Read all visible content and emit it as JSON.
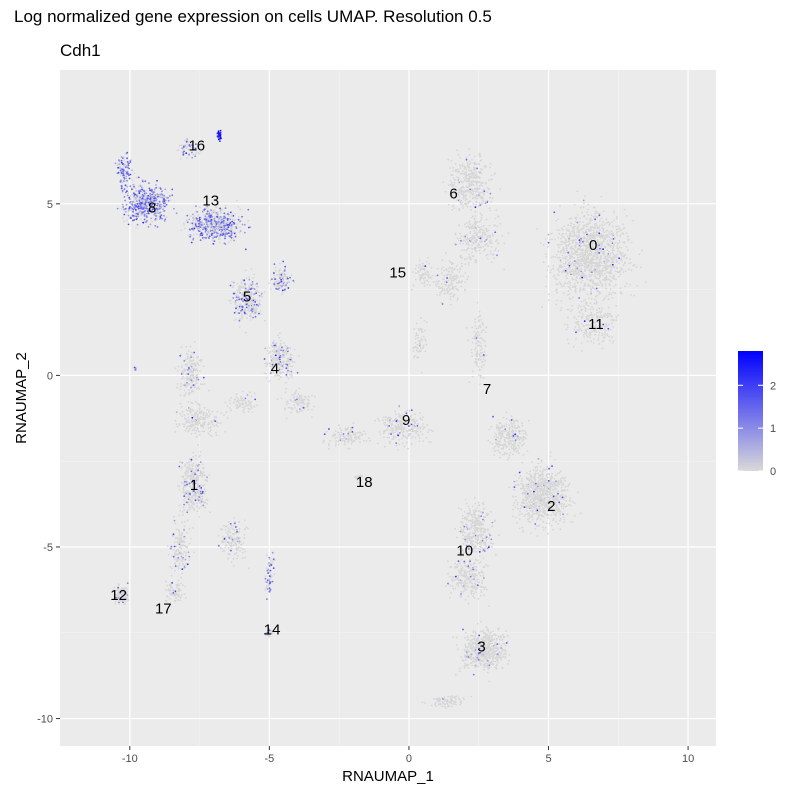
{
  "page_title": "Log normalized gene expression on cells UMAP. Resolution 0.5",
  "chart_data": {
    "type": "scatter",
    "title": "Cdh1",
    "xlabel": "RNAUMAP_1",
    "ylabel": "RNAUMAP_2",
    "xlim": [
      -12.5,
      11.0
    ],
    "ylim": [
      -10.8,
      8.9
    ],
    "x_ticks": [
      -10,
      -5,
      0,
      5,
      10
    ],
    "y_ticks": [
      -10,
      -5,
      0,
      5
    ],
    "x_tick_labels": [
      "-10",
      "-5",
      "0",
      "5",
      "10"
    ],
    "y_tick_labels": [
      "-10",
      "-5",
      "0",
      "5"
    ],
    "grid": true,
    "legend": {
      "position": "right",
      "title": "",
      "ticks": [
        0,
        1,
        2
      ],
      "tick_labels": [
        "0",
        "1",
        "2"
      ],
      "min": 0,
      "max": 2.8,
      "low_color": "#d9d9d9",
      "high_color": "#0000ff"
    },
    "clusters": [
      {
        "label": "0",
        "x": 6.6,
        "y": 3.8
      },
      {
        "label": "1",
        "x": -7.7,
        "y": -3.2
      },
      {
        "label": "2",
        "x": 5.1,
        "y": -3.8
      },
      {
        "label": "3",
        "x": 2.6,
        "y": -7.9
      },
      {
        "label": "4",
        "x": -4.8,
        "y": 0.2
      },
      {
        "label": "5",
        "x": -5.8,
        "y": 2.3
      },
      {
        "label": "6",
        "x": 1.6,
        "y": 5.3
      },
      {
        "label": "7",
        "x": 2.8,
        "y": -0.4
      },
      {
        "label": "8",
        "x": -9.2,
        "y": 4.9
      },
      {
        "label": "9",
        "x": -0.1,
        "y": -1.3
      },
      {
        "label": "10",
        "x": 2.0,
        "y": -5.1
      },
      {
        "label": "11",
        "x": 6.7,
        "y": 1.5
      },
      {
        "label": "12",
        "x": -10.4,
        "y": -6.4
      },
      {
        "label": "13",
        "x": -7.1,
        "y": 5.1
      },
      {
        "label": "14",
        "x": -4.9,
        "y": -7.4
      },
      {
        "label": "15",
        "x": -0.4,
        "y": 3.0
      },
      {
        "label": "16",
        "x": -7.6,
        "y": 6.7
      },
      {
        "label": "17",
        "x": -8.8,
        "y": -6.8
      },
      {
        "label": "18",
        "x": -1.6,
        "y": -3.1
      }
    ],
    "point_color_low": "#d6d6d6",
    "point_color_high": "#0000ff"
  }
}
